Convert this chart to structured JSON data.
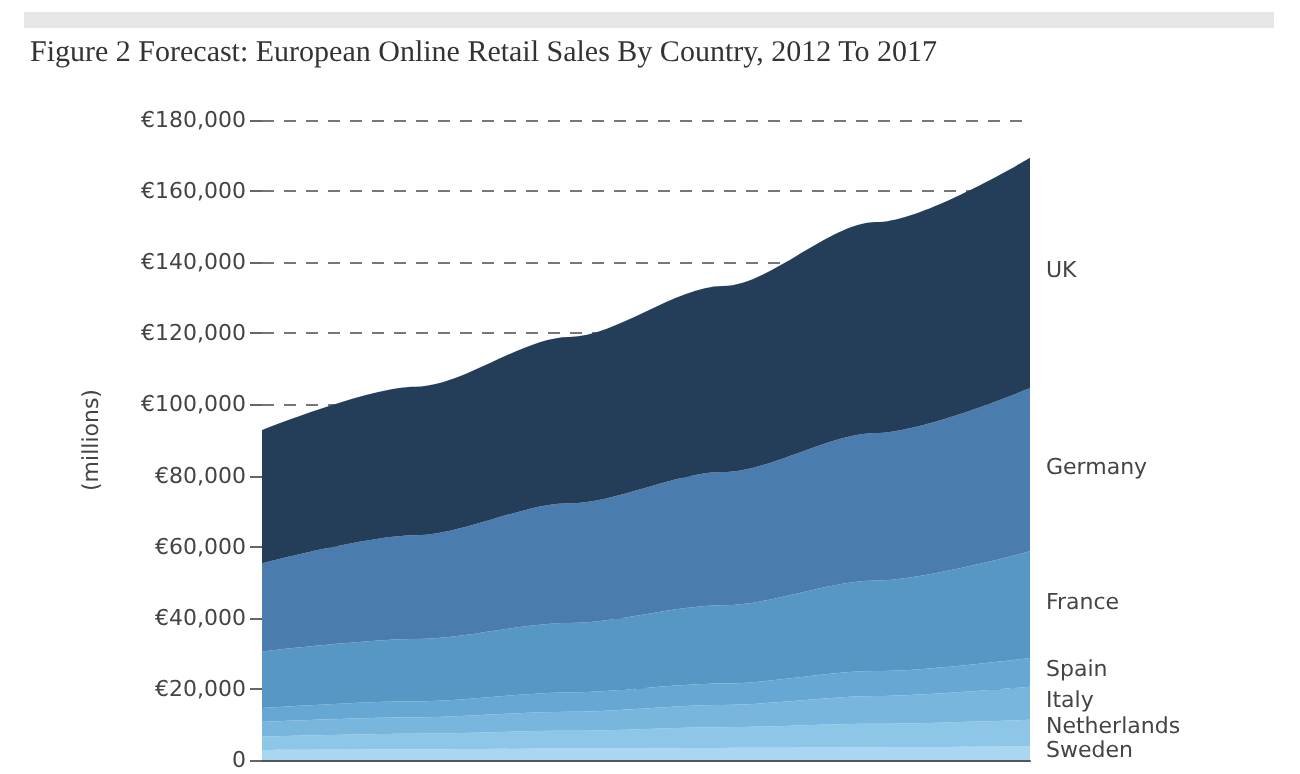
{
  "chart_data": {
    "type": "area",
    "title": "Figure 2 Forecast: European Online Retail Sales By Country, 2012 To 2017",
    "ylabel": "(millions)",
    "categories": [
      null,
      null,
      null,
      null,
      null,
      null
    ],
    "stacked": true,
    "legend": false,
    "grid": "y",
    "tick_labels": "y",
    "ylim": [
      0,
      180000
    ],
    "yticks": [
      0,
      {
        "value": 20000,
        "label": "€20,000"
      },
      {
        "value": 40000,
        "label": "€40,000"
      },
      {
        "value": 60000,
        "label": "€60,000"
      },
      {
        "value": 80000,
        "label": "€80,000"
      },
      {
        "value": 100000,
        "label": "€100,000"
      },
      {
        "value": 120000,
        "label": "€120,000"
      },
      {
        "value": 140000,
        "label": "€140,000"
      },
      {
        "value": 160000,
        "label": "€160,000"
      },
      {
        "value": 180000,
        "label": "€180,000"
      }
    ],
    "series": [
      {
        "name": "Sweden",
        "color": "#a9d6f0",
        "values": [
          2800,
          3000,
          3200,
          3400,
          3600,
          3800
        ]
      },
      {
        "name": "Netherlands",
        "color": "#8ec6e8",
        "values": [
          3800,
          4400,
          5000,
          5800,
          6600,
          7500
        ]
      },
      {
        "name": "Italy",
        "color": "#78b6de",
        "values": [
          4100,
          4600,
          5400,
          6300,
          7800,
          9300
        ]
      },
      {
        "name": "Spain",
        "color": "#67a7d3",
        "values": [
          3900,
          4500,
          5400,
          6000,
          7000,
          8100
        ]
      },
      {
        "name": "France",
        "color": "#5797c6",
        "values": [
          15900,
          17500,
          19500,
          22000,
          25500,
          30000
        ]
      },
      {
        "name": "Germany",
        "color": "#4a7cae",
        "values": [
          24800,
          29200,
          33700,
          37500,
          41500,
          45900
        ]
      },
      {
        "name": "UK",
        "color": "#243e5a",
        "values": [
          37500,
          41800,
          46800,
          52300,
          59300,
          64800
        ]
      }
    ]
  }
}
